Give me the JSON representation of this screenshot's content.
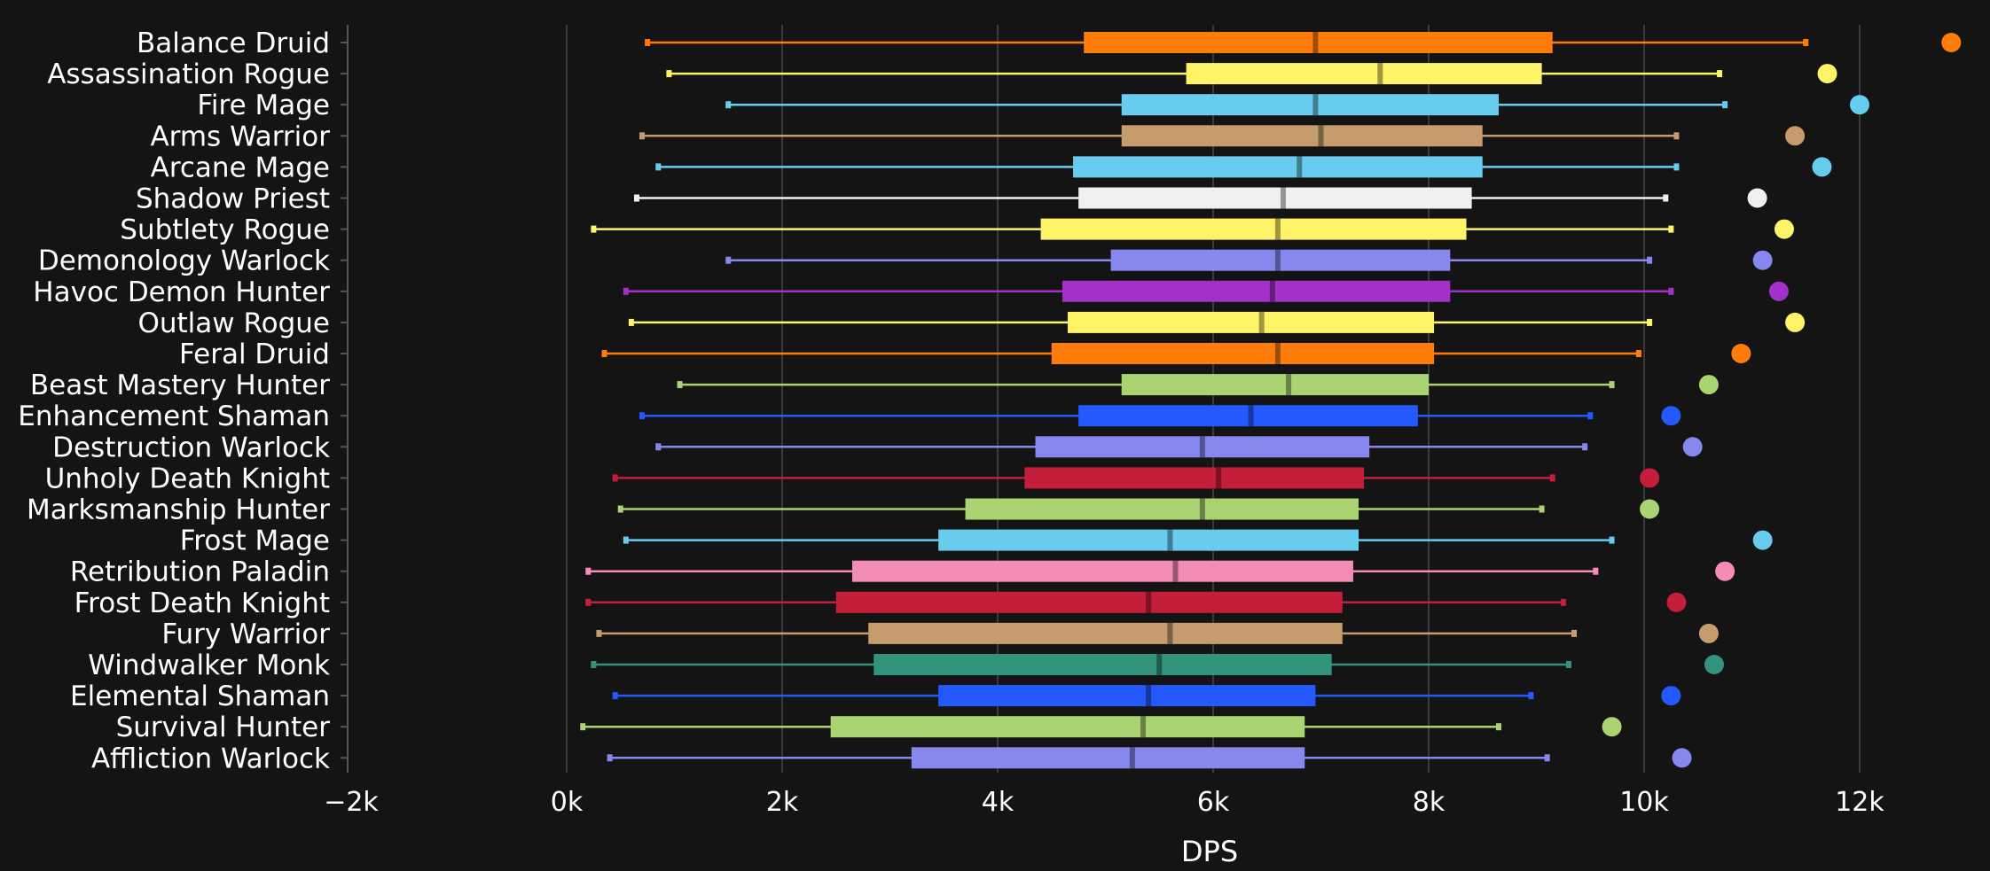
{
  "chart_data": {
    "type": "boxplot",
    "xlabel": "DPS",
    "xlim": [
      -2000,
      13000
    ],
    "xticks": [
      -2000,
      0,
      2000,
      4000,
      6000,
      8000,
      10000,
      12000
    ],
    "xtick_labels": [
      "−2k",
      "0k",
      "2k",
      "4k",
      "6k",
      "8k",
      "10k",
      "12k"
    ],
    "grid": true,
    "background": "#141414",
    "series": [
      {
        "name": "Balance Druid",
        "color": "#ff7c0a",
        "min": 750,
        "q1": 4800,
        "median": 6950,
        "q3": 9150,
        "max": 11500,
        "outlier": 12850
      },
      {
        "name": "Assassination Rogue",
        "color": "#fff468",
        "min": 950,
        "q1": 5750,
        "median": 7550,
        "q3": 9050,
        "max": 10700,
        "outlier": 11700
      },
      {
        "name": "Fire Mage",
        "color": "#68ccef",
        "min": 1500,
        "q1": 5150,
        "median": 6950,
        "q3": 8650,
        "max": 10750,
        "outlier": 12000
      },
      {
        "name": "Arms Warrior",
        "color": "#c69b6d",
        "min": 700,
        "q1": 5150,
        "median": 7000,
        "q3": 8500,
        "max": 10300,
        "outlier": 11400
      },
      {
        "name": "Arcane Mage",
        "color": "#68ccef",
        "min": 850,
        "q1": 4700,
        "median": 6800,
        "q3": 8500,
        "max": 10300,
        "outlier": 11650
      },
      {
        "name": "Shadow Priest",
        "color": "#f0f0f0",
        "min": 650,
        "q1": 4750,
        "median": 6650,
        "q3": 8400,
        "max": 10200,
        "outlier": 11050
      },
      {
        "name": "Subtlety Rogue",
        "color": "#fff468",
        "min": 250,
        "q1": 4400,
        "median": 6600,
        "q3": 8350,
        "max": 10250,
        "outlier": 11300
      },
      {
        "name": "Demonology Warlock",
        "color": "#8788ee",
        "min": 1500,
        "q1": 5050,
        "median": 6600,
        "q3": 8200,
        "max": 10050,
        "outlier": 11100
      },
      {
        "name": "Havoc Demon Hunter",
        "color": "#a330c9",
        "min": 550,
        "q1": 4600,
        "median": 6550,
        "q3": 8200,
        "max": 10250,
        "outlier": 11250
      },
      {
        "name": "Outlaw Rogue",
        "color": "#fff468",
        "min": 600,
        "q1": 4650,
        "median": 6450,
        "q3": 8050,
        "max": 10050,
        "outlier": 11400
      },
      {
        "name": "Feral Druid",
        "color": "#ff7c0a",
        "min": 350,
        "q1": 4500,
        "median": 6600,
        "q3": 8050,
        "max": 9950,
        "outlier": 10900
      },
      {
        "name": "Beast Mastery Hunter",
        "color": "#aad372",
        "min": 1050,
        "q1": 5150,
        "median": 6700,
        "q3": 8000,
        "max": 9700,
        "outlier": 10600
      },
      {
        "name": "Enhancement Shaman",
        "color": "#2459ff",
        "min": 700,
        "q1": 4750,
        "median": 6350,
        "q3": 7900,
        "max": 9500,
        "outlier": 10250
      },
      {
        "name": "Destruction Warlock",
        "color": "#8788ee",
        "min": 850,
        "q1": 4350,
        "median": 5900,
        "q3": 7450,
        "max": 9450,
        "outlier": 10450
      },
      {
        "name": "Unholy Death Knight",
        "color": "#c41e3a",
        "min": 450,
        "q1": 4250,
        "median": 6050,
        "q3": 7400,
        "max": 9150,
        "outlier": 10050
      },
      {
        "name": "Marksmanship Hunter",
        "color": "#aad372",
        "min": 500,
        "q1": 3700,
        "median": 5900,
        "q3": 7350,
        "max": 9050,
        "outlier": 10050
      },
      {
        "name": "Frost Mage",
        "color": "#68ccef",
        "min": 550,
        "q1": 3450,
        "median": 5600,
        "q3": 7350,
        "max": 9700,
        "outlier": 11100
      },
      {
        "name": "Retribution Paladin",
        "color": "#f48cba",
        "min": 200,
        "q1": 2650,
        "median": 5650,
        "q3": 7300,
        "max": 9550,
        "outlier": 10750
      },
      {
        "name": "Frost Death Knight",
        "color": "#c41e3a",
        "min": 200,
        "q1": 2500,
        "median": 5400,
        "q3": 7200,
        "max": 9250,
        "outlier": 10300
      },
      {
        "name": "Fury Warrior",
        "color": "#c69b6d",
        "min": 300,
        "q1": 2800,
        "median": 5600,
        "q3": 7200,
        "max": 9350,
        "outlier": 10600
      },
      {
        "name": "Windwalker Monk",
        "color": "#33937f",
        "min": 250,
        "q1": 2850,
        "median": 5500,
        "q3": 7100,
        "max": 9300,
        "outlier": 10650
      },
      {
        "name": "Elemental Shaman",
        "color": "#2459ff",
        "min": 450,
        "q1": 3450,
        "median": 5400,
        "q3": 6950,
        "max": 8950,
        "outlier": 10250
      },
      {
        "name": "Survival Hunter",
        "color": "#aad372",
        "min": 150,
        "q1": 2450,
        "median": 5350,
        "q3": 6850,
        "max": 8650,
        "outlier": 9700
      },
      {
        "name": "Affliction Warlock",
        "color": "#8788ee",
        "min": 400,
        "q1": 3200,
        "median": 5250,
        "q3": 6850,
        "max": 9100,
        "outlier": 10350
      }
    ]
  }
}
